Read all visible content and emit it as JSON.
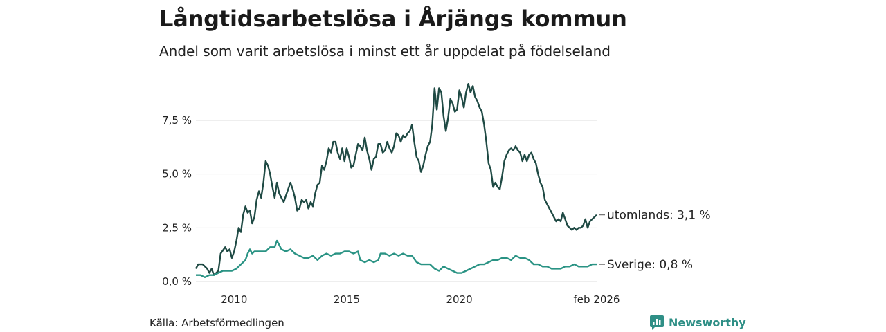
{
  "title": "Långtidsarbetslösa i Årjängs kommun",
  "subtitle": "Andel som varit arbetslösa i minst ett år uppdelat på födelseland",
  "source": "Källa: Arbetsförmedlingen",
  "brand": "Newsworthy",
  "colors": {
    "utomlands": "#1f4a44",
    "sverige": "#2a9384",
    "grid": "#dddddd",
    "brand": "#2f8f86"
  },
  "chart_data": {
    "type": "line",
    "title": "Långtidsarbetslösa i Årjängs kommun",
    "xlim": [
      2008.3,
      2026.1
    ],
    "ylim": [
      0,
      9.4
    ],
    "yticks": [
      0,
      2.5,
      5,
      7.5
    ],
    "ytick_labels": [
      "0,0 %",
      "2,5 %",
      "5,0 %",
      "7,5 %"
    ],
    "xticks": [
      2010,
      2015,
      2020,
      2026.1
    ],
    "xtick_labels": [
      "2010",
      "2015",
      "2020",
      "feb 2026"
    ],
    "series": [
      {
        "name": "utomlands",
        "end_label": "utomlands: 3,1 %",
        "color": "#1f4a44",
        "points": [
          [
            2008.3,
            0.6
          ],
          [
            2008.4,
            0.8
          ],
          [
            2008.6,
            0.8
          ],
          [
            2008.8,
            0.6
          ],
          [
            2008.9,
            0.4
          ],
          [
            2009.0,
            0.6
          ],
          [
            2009.1,
            0.3
          ],
          [
            2009.3,
            0.5
          ],
          [
            2009.4,
            1.3
          ],
          [
            2009.6,
            1.6
          ],
          [
            2009.7,
            1.4
          ],
          [
            2009.8,
            1.5
          ],
          [
            2009.9,
            1.1
          ],
          [
            2010.0,
            1.4
          ],
          [
            2010.1,
            1.9
          ],
          [
            2010.2,
            2.5
          ],
          [
            2010.3,
            2.3
          ],
          [
            2010.4,
            3.1
          ],
          [
            2010.5,
            3.5
          ],
          [
            2010.6,
            3.2
          ],
          [
            2010.7,
            3.3
          ],
          [
            2010.8,
            2.7
          ],
          [
            2010.9,
            3.0
          ],
          [
            2011.0,
            3.8
          ],
          [
            2011.1,
            4.2
          ],
          [
            2011.2,
            3.9
          ],
          [
            2011.3,
            4.6
          ],
          [
            2011.4,
            5.6
          ],
          [
            2011.5,
            5.4
          ],
          [
            2011.6,
            5.0
          ],
          [
            2011.7,
            4.4
          ],
          [
            2011.8,
            3.9
          ],
          [
            2011.9,
            4.6
          ],
          [
            2012.0,
            4.1
          ],
          [
            2012.1,
            3.9
          ],
          [
            2012.2,
            3.7
          ],
          [
            2012.3,
            4.0
          ],
          [
            2012.4,
            4.3
          ],
          [
            2012.5,
            4.6
          ],
          [
            2012.6,
            4.3
          ],
          [
            2012.7,
            3.9
          ],
          [
            2012.8,
            3.3
          ],
          [
            2012.9,
            3.4
          ],
          [
            2013.0,
            3.8
          ],
          [
            2013.1,
            3.7
          ],
          [
            2013.2,
            3.8
          ],
          [
            2013.3,
            3.4
          ],
          [
            2013.4,
            3.7
          ],
          [
            2013.5,
            3.5
          ],
          [
            2013.6,
            4.1
          ],
          [
            2013.7,
            4.5
          ],
          [
            2013.8,
            4.6
          ],
          [
            2013.9,
            5.4
          ],
          [
            2014.0,
            5.2
          ],
          [
            2014.1,
            5.6
          ],
          [
            2014.2,
            6.2
          ],
          [
            2014.3,
            6.0
          ],
          [
            2014.4,
            6.5
          ],
          [
            2014.5,
            6.5
          ],
          [
            2014.6,
            6.0
          ],
          [
            2014.7,
            5.7
          ],
          [
            2014.8,
            6.2
          ],
          [
            2014.9,
            5.6
          ],
          [
            2015.0,
            6.2
          ],
          [
            2015.1,
            5.8
          ],
          [
            2015.2,
            5.3
          ],
          [
            2015.3,
            5.4
          ],
          [
            2015.4,
            5.9
          ],
          [
            2015.5,
            6.4
          ],
          [
            2015.6,
            6.3
          ],
          [
            2015.7,
            6.1
          ],
          [
            2015.8,
            6.7
          ],
          [
            2015.9,
            6.1
          ],
          [
            2016.0,
            5.7
          ],
          [
            2016.1,
            5.2
          ],
          [
            2016.2,
            5.7
          ],
          [
            2016.3,
            5.8
          ],
          [
            2016.4,
            6.4
          ],
          [
            2016.5,
            6.4
          ],
          [
            2016.6,
            6.0
          ],
          [
            2016.7,
            6.1
          ],
          [
            2016.8,
            6.5
          ],
          [
            2016.9,
            6.2
          ],
          [
            2017.0,
            6.0
          ],
          [
            2017.1,
            6.3
          ],
          [
            2017.2,
            6.9
          ],
          [
            2017.3,
            6.8
          ],
          [
            2017.4,
            6.5
          ],
          [
            2017.5,
            6.8
          ],
          [
            2017.6,
            6.7
          ],
          [
            2017.7,
            6.9
          ],
          [
            2017.8,
            7.0
          ],
          [
            2017.9,
            7.3
          ],
          [
            2018.0,
            6.5
          ],
          [
            2018.1,
            5.8
          ],
          [
            2018.2,
            5.6
          ],
          [
            2018.3,
            5.1
          ],
          [
            2018.4,
            5.4
          ],
          [
            2018.5,
            5.9
          ],
          [
            2018.6,
            6.3
          ],
          [
            2018.7,
            6.5
          ],
          [
            2018.8,
            7.3
          ],
          [
            2018.9,
            9.0
          ],
          [
            2019.0,
            8.0
          ],
          [
            2019.1,
            9.0
          ],
          [
            2019.2,
            8.8
          ],
          [
            2019.3,
            7.7
          ],
          [
            2019.4,
            7.0
          ],
          [
            2019.5,
            7.6
          ],
          [
            2019.6,
            8.5
          ],
          [
            2019.7,
            8.3
          ],
          [
            2019.8,
            7.9
          ],
          [
            2019.9,
            8.0
          ],
          [
            2020.0,
            8.9
          ],
          [
            2020.1,
            8.6
          ],
          [
            2020.2,
            8.1
          ],
          [
            2020.3,
            8.8
          ],
          [
            2020.4,
            9.2
          ],
          [
            2020.5,
            8.8
          ],
          [
            2020.6,
            9.1
          ],
          [
            2020.7,
            8.6
          ],
          [
            2020.8,
            8.4
          ],
          [
            2020.9,
            8.1
          ],
          [
            2021.0,
            7.9
          ],
          [
            2021.1,
            7.3
          ],
          [
            2021.2,
            6.5
          ],
          [
            2021.3,
            5.5
          ],
          [
            2021.4,
            5.2
          ],
          [
            2021.5,
            4.4
          ],
          [
            2021.6,
            4.6
          ],
          [
            2021.7,
            4.4
          ],
          [
            2021.8,
            4.3
          ],
          [
            2021.9,
            4.9
          ],
          [
            2022.0,
            5.6
          ],
          [
            2022.1,
            5.9
          ],
          [
            2022.2,
            6.1
          ],
          [
            2022.3,
            6.2
          ],
          [
            2022.4,
            6.1
          ],
          [
            2022.5,
            6.3
          ],
          [
            2022.6,
            6.1
          ],
          [
            2022.7,
            6.0
          ],
          [
            2022.8,
            5.6
          ],
          [
            2022.9,
            5.9
          ],
          [
            2023.0,
            5.6
          ],
          [
            2023.1,
            5.9
          ],
          [
            2023.2,
            6.0
          ],
          [
            2023.3,
            5.7
          ],
          [
            2023.4,
            5.5
          ],
          [
            2023.5,
            5.0
          ],
          [
            2023.6,
            4.6
          ],
          [
            2023.7,
            4.4
          ],
          [
            2023.8,
            3.8
          ],
          [
            2023.9,
            3.6
          ],
          [
            2024.0,
            3.4
          ],
          [
            2024.1,
            3.2
          ],
          [
            2024.2,
            3.0
          ],
          [
            2024.3,
            2.8
          ],
          [
            2024.4,
            2.9
          ],
          [
            2024.5,
            2.8
          ],
          [
            2024.6,
            3.2
          ],
          [
            2024.7,
            2.9
          ],
          [
            2024.8,
            2.6
          ],
          [
            2024.9,
            2.5
          ],
          [
            2025.0,
            2.4
          ],
          [
            2025.1,
            2.5
          ],
          [
            2025.2,
            2.4
          ],
          [
            2025.3,
            2.5
          ],
          [
            2025.4,
            2.5
          ],
          [
            2025.5,
            2.6
          ],
          [
            2025.6,
            2.9
          ],
          [
            2025.7,
            2.5
          ],
          [
            2025.8,
            2.8
          ],
          [
            2025.9,
            2.9
          ],
          [
            2026.1,
            3.1
          ]
        ]
      },
      {
        "name": "Sverige",
        "end_label": "Sverige: 0,8 %",
        "color": "#2a9384",
        "points": [
          [
            2008.3,
            0.3
          ],
          [
            2008.5,
            0.3
          ],
          [
            2008.7,
            0.2
          ],
          [
            2008.9,
            0.3
          ],
          [
            2009.1,
            0.3
          ],
          [
            2009.3,
            0.4
          ],
          [
            2009.5,
            0.5
          ],
          [
            2009.7,
            0.5
          ],
          [
            2009.9,
            0.5
          ],
          [
            2010.1,
            0.6
          ],
          [
            2010.3,
            0.8
          ],
          [
            2010.5,
            1.0
          ],
          [
            2010.6,
            1.3
          ],
          [
            2010.7,
            1.5
          ],
          [
            2010.8,
            1.3
          ],
          [
            2010.9,
            1.4
          ],
          [
            2011.0,
            1.4
          ],
          [
            2011.2,
            1.4
          ],
          [
            2011.4,
            1.4
          ],
          [
            2011.6,
            1.6
          ],
          [
            2011.8,
            1.6
          ],
          [
            2011.9,
            1.9
          ],
          [
            2012.0,
            1.7
          ],
          [
            2012.1,
            1.5
          ],
          [
            2012.3,
            1.4
          ],
          [
            2012.5,
            1.5
          ],
          [
            2012.7,
            1.3
          ],
          [
            2012.9,
            1.2
          ],
          [
            2013.1,
            1.1
          ],
          [
            2013.3,
            1.1
          ],
          [
            2013.5,
            1.2
          ],
          [
            2013.7,
            1.0
          ],
          [
            2013.9,
            1.2
          ],
          [
            2014.1,
            1.3
          ],
          [
            2014.3,
            1.2
          ],
          [
            2014.5,
            1.3
          ],
          [
            2014.7,
            1.3
          ],
          [
            2014.9,
            1.4
          ],
          [
            2015.1,
            1.4
          ],
          [
            2015.3,
            1.3
          ],
          [
            2015.5,
            1.4
          ],
          [
            2015.6,
            1.0
          ],
          [
            2015.8,
            0.9
          ],
          [
            2016.0,
            1.0
          ],
          [
            2016.2,
            0.9
          ],
          [
            2016.4,
            1.0
          ],
          [
            2016.5,
            1.3
          ],
          [
            2016.7,
            1.3
          ],
          [
            2016.9,
            1.2
          ],
          [
            2017.1,
            1.3
          ],
          [
            2017.3,
            1.2
          ],
          [
            2017.5,
            1.3
          ],
          [
            2017.7,
            1.2
          ],
          [
            2017.9,
            1.2
          ],
          [
            2018.1,
            0.9
          ],
          [
            2018.3,
            0.8
          ],
          [
            2018.5,
            0.8
          ],
          [
            2018.7,
            0.8
          ],
          [
            2018.9,
            0.6
          ],
          [
            2019.1,
            0.5
          ],
          [
            2019.3,
            0.7
          ],
          [
            2019.5,
            0.6
          ],
          [
            2019.7,
            0.5
          ],
          [
            2019.9,
            0.4
          ],
          [
            2020.1,
            0.4
          ],
          [
            2020.3,
            0.5
          ],
          [
            2020.5,
            0.6
          ],
          [
            2020.7,
            0.7
          ],
          [
            2020.9,
            0.8
          ],
          [
            2021.1,
            0.8
          ],
          [
            2021.3,
            0.9
          ],
          [
            2021.5,
            1.0
          ],
          [
            2021.7,
            1.0
          ],
          [
            2021.9,
            1.1
          ],
          [
            2022.1,
            1.1
          ],
          [
            2022.3,
            1.0
          ],
          [
            2022.5,
            1.2
          ],
          [
            2022.7,
            1.1
          ],
          [
            2022.9,
            1.1
          ],
          [
            2023.1,
            1.0
          ],
          [
            2023.3,
            0.8
          ],
          [
            2023.5,
            0.8
          ],
          [
            2023.7,
            0.7
          ],
          [
            2023.9,
            0.7
          ],
          [
            2024.1,
            0.6
          ],
          [
            2024.3,
            0.6
          ],
          [
            2024.5,
            0.6
          ],
          [
            2024.7,
            0.7
          ],
          [
            2024.9,
            0.7
          ],
          [
            2025.1,
            0.8
          ],
          [
            2025.3,
            0.7
          ],
          [
            2025.5,
            0.7
          ],
          [
            2025.7,
            0.7
          ],
          [
            2025.9,
            0.8
          ],
          [
            2026.1,
            0.8
          ]
        ]
      }
    ]
  }
}
